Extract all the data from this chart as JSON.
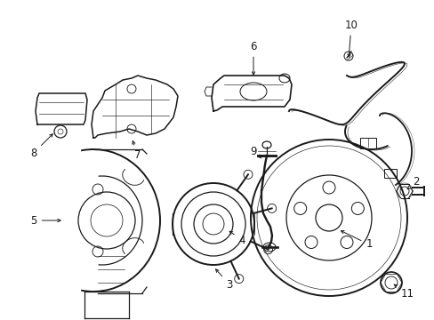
{
  "bg_color": "#ffffff",
  "line_color": "#1a1a1a",
  "fig_width": 4.89,
  "fig_height": 3.6,
  "dpi": 100,
  "label_fs": 8.5,
  "lw": 0.9
}
